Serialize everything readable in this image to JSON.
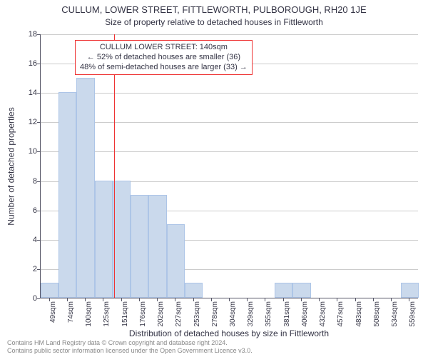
{
  "chart": {
    "type": "histogram",
    "title_main": "CULLUM, LOWER STREET, FITTLEWORTH, PULBOROUGH, RH20 1JE",
    "title_sub": "Size of property relative to detached houses in Fittleworth",
    "y_axis_label": "Number of detached properties",
    "x_axis_label": "Distribution of detached houses by size in Fittleworth",
    "bar_fill": "#cad9ec",
    "bar_stroke": "#adc5e7",
    "grid_color": "#cccccc",
    "axis_color": "#555566",
    "ref_line_color": "#ee3333",
    "background": "#ffffff",
    "ylim": [
      0,
      18
    ],
    "ytick_step": 2,
    "x_tick_labels": [
      "49sqm",
      "74sqm",
      "100sqm",
      "125sqm",
      "151sqm",
      "176sqm",
      "202sqm",
      "227sqm",
      "253sqm",
      "278sqm",
      "304sqm",
      "329sqm",
      "355sqm",
      "381sqm",
      "406sqm",
      "432sqm",
      "457sqm",
      "483sqm",
      "508sqm",
      "534sqm",
      "559sqm"
    ],
    "bars": [
      1,
      14,
      15,
      8,
      8,
      7,
      7,
      5,
      1,
      0,
      0,
      0,
      0,
      1,
      1,
      0,
      0,
      0,
      0,
      0,
      1
    ],
    "ref_value_sqm": 140,
    "x_range_sqm": [
      36,
      572
    ],
    "annotation": {
      "line1": "CULLUM LOWER STREET: 140sqm",
      "line2": "← 52% of detached houses are smaller (36)",
      "line3": "48% of semi-detached houses are larger (33) →"
    },
    "footer_line1": "Contains HM Land Registry data © Crown copyright and database right 2024.",
    "footer_line2": "Contains public sector information licensed under the Open Government Licence v3.0."
  }
}
